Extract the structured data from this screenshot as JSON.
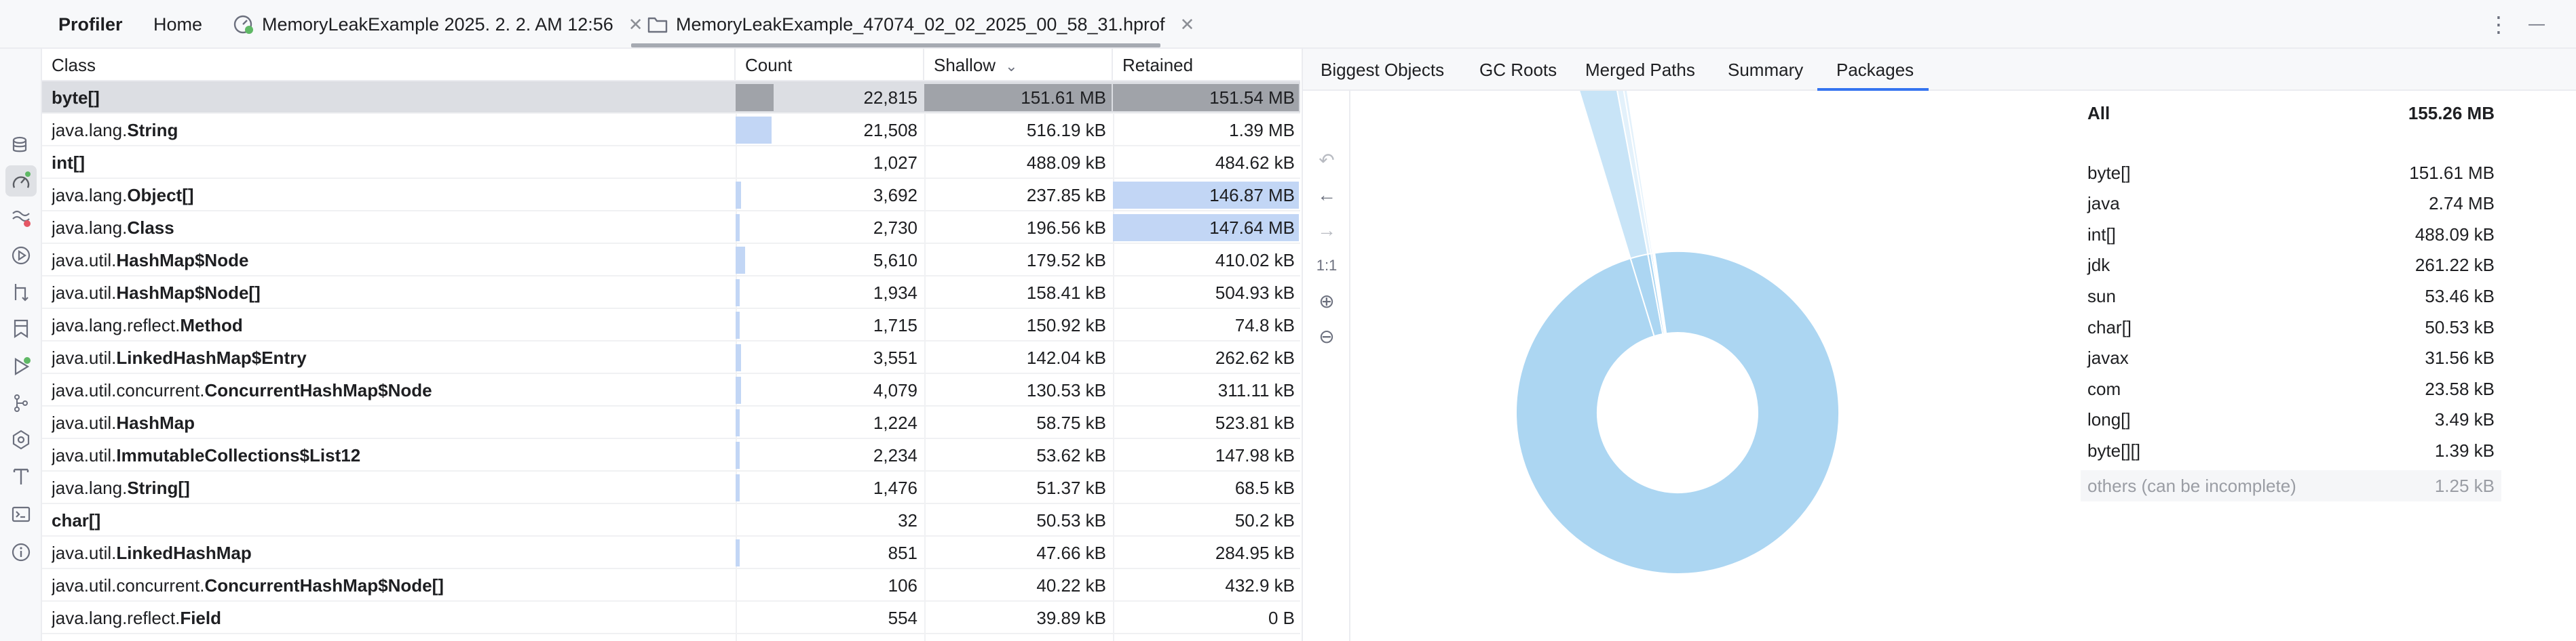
{
  "topbar": {
    "profiler_label": "Profiler",
    "home_label": "Home",
    "session_tab_label": "MemoryLeakExample 2025. 2. 2. AM 12:56",
    "hprof_tab_label": "MemoryLeakExample_47074_02_02_2025_00_58_31.hprof",
    "close_glyph": "✕",
    "more_glyph": "⋮",
    "minimize_glyph": "—"
  },
  "toolstrip": {
    "icons": [
      "database-icon",
      "profiler-icon",
      "memory-issue-icon",
      "run-icon",
      "git-icon",
      "bookmark-icon",
      "run-green-icon",
      "structure-icon",
      "services-icon",
      "text-icon",
      "terminal-icon",
      "info-icon"
    ]
  },
  "table": {
    "headers": {
      "class": "Class",
      "count": "Count",
      "shallow": "Shallow",
      "retained": "Retained"
    },
    "sort_glyph": "⌄",
    "rows": [
      {
        "prefix": "",
        "name": "byte[]",
        "count": "22,815",
        "shallow": "151.61 MB",
        "retained": "151.54 MB",
        "count_frac": 0.2
      },
      {
        "prefix": "java.lang.",
        "name": "String",
        "count": "21,508",
        "shallow": "516.19 kB",
        "retained": "1.39 MB",
        "count_frac": 0.19
      },
      {
        "prefix": "",
        "name": "int[]",
        "count": "1,027",
        "shallow": "488.09 kB",
        "retained": "484.62 kB",
        "count_frac": 0
      },
      {
        "prefix": "java.lang.",
        "name": "Object[]",
        "count": "3,692",
        "shallow": "237.85 kB",
        "retained": "146.87 MB",
        "count_frac": 0.03
      },
      {
        "prefix": "java.lang.",
        "name": "Class",
        "count": "2,730",
        "shallow": "196.56 kB",
        "retained": "147.64 MB",
        "count_frac": 0.02
      },
      {
        "prefix": "java.util.",
        "name": "HashMap$Node",
        "count": "5,610",
        "shallow": "179.52 kB",
        "retained": "410.02 kB",
        "count_frac": 0.05
      },
      {
        "prefix": "java.util.",
        "name": "HashMap$Node[]",
        "count": "1,934",
        "shallow": "158.41 kB",
        "retained": "504.93 kB",
        "count_frac": 0.02
      },
      {
        "prefix": "java.lang.reflect.",
        "name": "Method",
        "count": "1,715",
        "shallow": "150.92 kB",
        "retained": "74.8 kB",
        "count_frac": 0.02
      },
      {
        "prefix": "java.util.",
        "name": "LinkedHashMap$Entry",
        "count": "3,551",
        "shallow": "142.04 kB",
        "retained": "262.62 kB",
        "count_frac": 0.03
      },
      {
        "prefix": "java.util.concurrent.",
        "name": "ConcurrentHashMap$Node",
        "count": "4,079",
        "shallow": "130.53 kB",
        "retained": "311.11 kB",
        "count_frac": 0.03
      },
      {
        "prefix": "java.util.",
        "name": "HashMap",
        "count": "1,224",
        "shallow": "58.75 kB",
        "retained": "523.81 kB",
        "count_frac": 0.01
      },
      {
        "prefix": "java.util.",
        "name": "ImmutableCollections$List12",
        "count": "2,234",
        "shallow": "53.62 kB",
        "retained": "147.98 kB",
        "count_frac": 0.02
      },
      {
        "prefix": "java.lang.",
        "name": "String[]",
        "count": "1,476",
        "shallow": "51.37 kB",
        "retained": "68.5 kB",
        "count_frac": 0.01
      },
      {
        "prefix": "",
        "name": "char[]",
        "count": "32",
        "shallow": "50.53 kB",
        "retained": "50.2 kB",
        "count_frac": 0
      },
      {
        "prefix": "java.util.",
        "name": "LinkedHashMap",
        "count": "851",
        "shallow": "47.66 kB",
        "retained": "284.95 kB",
        "count_frac": 0.01
      },
      {
        "prefix": "java.util.concurrent.",
        "name": "ConcurrentHashMap$Node[]",
        "count": "106",
        "shallow": "40.22 kB",
        "retained": "432.9 kB",
        "count_frac": 0
      },
      {
        "prefix": "java.lang.reflect.",
        "name": "Field",
        "count": "554",
        "shallow": "39.89 kB",
        "retained": "0 B",
        "count_frac": 0
      }
    ]
  },
  "right": {
    "tabs": [
      "Biggest Objects",
      "GC Roots",
      "Merged Paths",
      "Summary",
      "Packages"
    ],
    "active_tab": "Packages",
    "view_tools": {
      "undo": "↶",
      "back": "←",
      "forward": "→",
      "actual_size": "1:1",
      "zoom_in": "⊕",
      "zoom_out": "⊖"
    },
    "legend": [
      {
        "name": "All",
        "value": "155.26 MB"
      },
      {
        "name": "byte[]",
        "value": "151.61 MB"
      },
      {
        "name": "java",
        "value": "2.74 MB"
      },
      {
        "name": "int[]",
        "value": "488.09 kB"
      },
      {
        "name": "jdk",
        "value": "261.22 kB"
      },
      {
        "name": "sun",
        "value": "53.46 kB"
      },
      {
        "name": "char[]",
        "value": "50.53 kB"
      },
      {
        "name": "javax",
        "value": "31.56 kB"
      },
      {
        "name": "com",
        "value": "23.58 kB"
      },
      {
        "name": "long[]",
        "value": "3.49 kB"
      },
      {
        "name": "byte[][]",
        "value": "1.39 kB"
      },
      {
        "name": "others (can be incomplete)",
        "value": "1.25 kB"
      }
    ]
  },
  "chart_data": {
    "type": "pie",
    "style": "sunburst",
    "unit": "kB",
    "slices": [
      {
        "name": "byte[]",
        "value": 151610
      },
      {
        "name": "java",
        "value": 2740
      },
      {
        "name": "int[]",
        "value": 488.09
      },
      {
        "name": "jdk",
        "value": 261.22
      },
      {
        "name": "sun",
        "value": 53.46
      },
      {
        "name": "char[]",
        "value": 50.53
      },
      {
        "name": "javax",
        "value": 31.56
      },
      {
        "name": "com",
        "value": 23.58
      },
      {
        "name": "long[]",
        "value": 3.49
      },
      {
        "name": "byte[][]",
        "value": 1.39
      },
      {
        "name": "others (can be incomplete)",
        "value": 1.25
      }
    ],
    "colors": {
      "ring": "#acd6f2",
      "outer": "#c8e4f7",
      "outer_light": "#e3f1fb",
      "separator": "#ffffff"
    }
  },
  "colors": {
    "accent": "#3574f0",
    "count_bar": "#c2d6f5",
    "selected_row": "#dcdee3",
    "retained_highlight": "#c2d6f5"
  }
}
